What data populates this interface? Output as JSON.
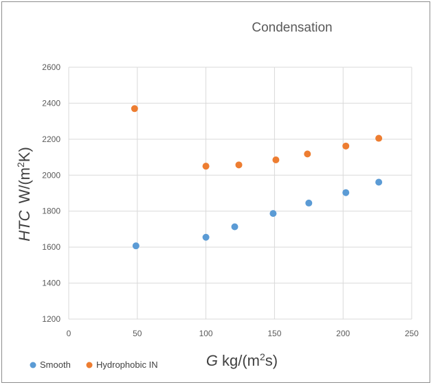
{
  "chart_data": {
    "type": "scatter",
    "title": "Condensation",
    "xlabel_italic": "G",
    "xlabel_rest": "kg/(m",
    "xlabel_sup": "2",
    "xlabel_end": "s)",
    "ylabel_italic": "HTC",
    "ylabel_rest": "W/(m",
    "ylabel_sup": "2",
    "ylabel_end": "K)",
    "xlim": [
      0,
      250
    ],
    "ylim": [
      1200,
      2600
    ],
    "xticks": [
      0,
      50,
      100,
      150,
      200,
      250
    ],
    "yticks": [
      1200,
      1400,
      1600,
      1800,
      2000,
      2200,
      2400,
      2600
    ],
    "grid": true,
    "legend_position": "bottom-left",
    "series": [
      {
        "name": "Smooth",
        "color": "#5b9bd5",
        "points": [
          {
            "x": 49,
            "y": 1607
          },
          {
            "x": 100,
            "y": 1655
          },
          {
            "x": 121,
            "y": 1713
          },
          {
            "x": 149,
            "y": 1787
          },
          {
            "x": 175,
            "y": 1845
          },
          {
            "x": 202,
            "y": 1903
          },
          {
            "x": 226,
            "y": 1961
          }
        ]
      },
      {
        "name": "Hydrophobic IN",
        "color": "#ed7d31",
        "points": [
          {
            "x": 48,
            "y": 2370
          },
          {
            "x": 100,
            "y": 2050
          },
          {
            "x": 124,
            "y": 2057
          },
          {
            "x": 151,
            "y": 2085
          },
          {
            "x": 174,
            "y": 2118
          },
          {
            "x": 202,
            "y": 2162
          },
          {
            "x": 226,
            "y": 2205
          }
        ]
      }
    ]
  }
}
